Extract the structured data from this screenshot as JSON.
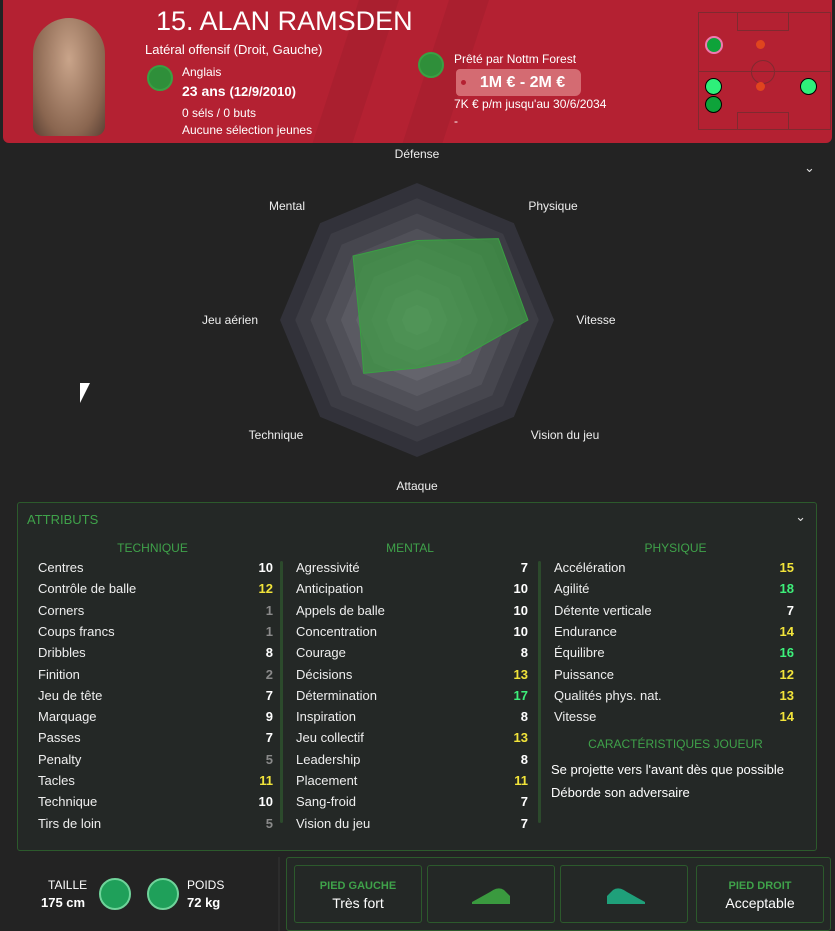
{
  "header": {
    "name": "15. ALAN RAMSDEN",
    "position": "Latéral offensif (Droit, Gauche)",
    "nationality": "Anglais",
    "age": "23 ans",
    "birthdate": "(12/9/2010)",
    "caps": "0 séls / 0 buts",
    "youth": "Aucune sélection jeunes",
    "loan": "Prêté par Nottm Forest",
    "value": "1M € - 2M €",
    "contract": "7K € p/m jusqu'au 30/6/2034",
    "extra": "-"
  },
  "radar": {
    "labels": [
      "Défense",
      "Physique",
      "Vitesse",
      "Vision du jeu",
      "Attaque",
      "Technique",
      "Jeu aérien",
      "Mental"
    ],
    "values": [
      0.58,
      0.84,
      0.81,
      0.41,
      0.35,
      0.55,
      0.42,
      0.66
    ],
    "fill": "#3f9a45"
  },
  "attributes": {
    "title": "ATTRIBUTS",
    "technique": {
      "title": "TECHNIQUE",
      "items": [
        [
          "Centres",
          10
        ],
        [
          "Contrôle de balle",
          12
        ],
        [
          "Corners",
          1
        ],
        [
          "Coups francs",
          1
        ],
        [
          "Dribbles",
          8
        ],
        [
          "Finition",
          2
        ],
        [
          "Jeu de tête",
          7
        ],
        [
          "Marquage",
          9
        ],
        [
          "Passes",
          7
        ],
        [
          "Penalty",
          5
        ],
        [
          "Tacles",
          11
        ],
        [
          "Technique",
          10
        ],
        [
          "Tirs de loin",
          5
        ]
      ]
    },
    "mental": {
      "title": "MENTAL",
      "items": [
        [
          "Agressivité",
          7
        ],
        [
          "Anticipation",
          10
        ],
        [
          "Appels de balle",
          10
        ],
        [
          "Concentration",
          10
        ],
        [
          "Courage",
          8
        ],
        [
          "Décisions",
          13
        ],
        [
          "Détermination",
          17
        ],
        [
          "Inspiration",
          8
        ],
        [
          "Jeu collectif",
          13
        ],
        [
          "Leadership",
          8
        ],
        [
          "Placement",
          11
        ],
        [
          "Sang-froid",
          7
        ],
        [
          "Vision du jeu",
          7
        ]
      ]
    },
    "physique": {
      "title": "PHYSIQUE",
      "items": [
        [
          "Accélération",
          15
        ],
        [
          "Agilité",
          18
        ],
        [
          "Détente verticale",
          7
        ],
        [
          "Endurance",
          14
        ],
        [
          "Équilibre",
          16
        ],
        [
          "Puissance",
          12
        ],
        [
          "Qualités phys. nat.",
          13
        ],
        [
          "Vitesse",
          14
        ]
      ]
    },
    "traits_title": "CARACTÉRISTIQUES JOUEUR",
    "traits": [
      "Se projette vers l'avant dès que possible",
      "Déborde son adversaire"
    ]
  },
  "footer": {
    "height_label": "TAILLE",
    "height": "175 cm",
    "weight_label": "POIDS",
    "weight": "72 kg",
    "left_foot_label": "PIED GAUCHE",
    "left_foot": "Très fort",
    "right_foot_label": "PIED DROIT",
    "right_foot": "Acceptable"
  },
  "colors": {
    "header": "#b42132",
    "accent": "#3fa24a",
    "low": "#8a8a8a",
    "mid": "#ffffff",
    "good": "#f2e43a",
    "great": "#3df07a"
  }
}
